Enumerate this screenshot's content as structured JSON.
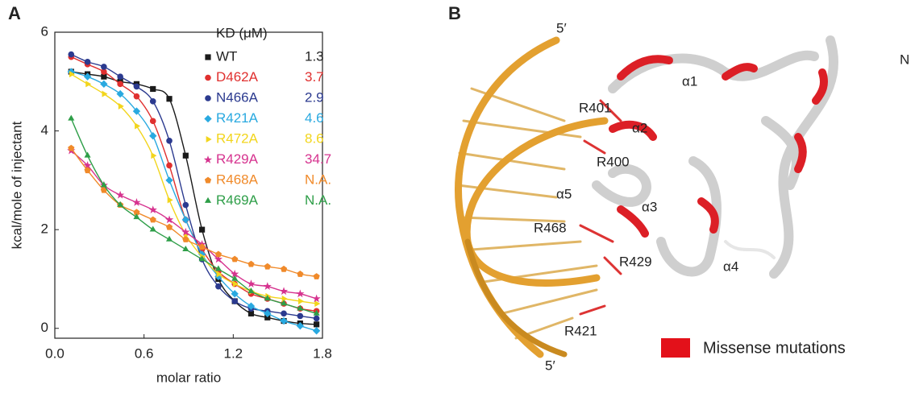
{
  "chart_data": {
    "type": "scatter",
    "panel_label": "A",
    "x_label": "molar ratio",
    "y_label": "kcal/mole of injectant",
    "legend_title": "KD (μM)",
    "x": [
      0.11,
      0.22,
      0.33,
      0.44,
      0.55,
      0.66,
      0.77,
      0.88,
      0.99,
      1.1,
      1.21,
      1.32,
      1.43,
      1.54,
      1.65,
      1.76
    ],
    "xlim": [
      0,
      1.8
    ],
    "ylim": [
      -0.2,
      6
    ],
    "xticks": [
      {
        "value": 0,
        "label": "0.0"
      },
      {
        "value": 0.6,
        "label": "0.6"
      },
      {
        "value": 1.2,
        "label": "1.2"
      },
      {
        "value": 1.8,
        "label": "1.8"
      }
    ],
    "yticks": [
      0,
      2,
      4,
      6
    ],
    "series": [
      {
        "name": "WT",
        "kd": 1.3,
        "color": "#1a1a1a",
        "marker": "square",
        "values": [
          5.2,
          5.15,
          5.1,
          5.0,
          4.95,
          4.85,
          4.65,
          3.5,
          2.0,
          1.0,
          0.55,
          0.3,
          0.22,
          0.15,
          0.1,
          0.08
        ]
      },
      {
        "name": "D462A",
        "kd": 3.7,
        "color": "#e0302f",
        "marker": "circle",
        "values": [
          5.5,
          5.35,
          5.2,
          4.95,
          4.7,
          4.2,
          3.3,
          2.2,
          1.6,
          1.15,
          0.9,
          0.7,
          0.6,
          0.5,
          0.4,
          0.35
        ]
      },
      {
        "name": "N466A",
        "kd": 2.9,
        "color": "#2b3a8f",
        "marker": "circle",
        "values": [
          5.55,
          5.4,
          5.3,
          5.1,
          4.9,
          4.6,
          3.8,
          2.5,
          1.4,
          0.85,
          0.55,
          0.4,
          0.35,
          0.3,
          0.25,
          0.2
        ]
      },
      {
        "name": "R421A",
        "kd": 4.6,
        "color": "#29a9e0",
        "marker": "diamond",
        "values": [
          5.2,
          5.1,
          4.95,
          4.75,
          4.4,
          3.9,
          3.0,
          2.2,
          1.5,
          1.05,
          0.7,
          0.45,
          0.3,
          0.15,
          0.05,
          -0.05
        ]
      },
      {
        "name": "R472A",
        "kd": 8.6,
        "color": "#f2d51c",
        "marker": "triangle-right",
        "values": [
          5.15,
          4.95,
          4.75,
          4.5,
          4.1,
          3.5,
          2.6,
          1.9,
          1.45,
          1.1,
          0.9,
          0.75,
          0.65,
          0.6,
          0.55,
          0.5
        ]
      },
      {
        "name": "R429A",
        "kd": 34.7,
        "color": "#d6338f",
        "marker": "star",
        "values": [
          3.6,
          3.3,
          2.9,
          2.7,
          2.55,
          2.4,
          2.2,
          1.95,
          1.7,
          1.4,
          1.1,
          0.9,
          0.85,
          0.75,
          0.7,
          0.6
        ]
      },
      {
        "name": "R468A",
        "kd": "N.A.",
        "color": "#f08a2a",
        "marker": "pentagon",
        "values": [
          3.65,
          3.2,
          2.8,
          2.5,
          2.35,
          2.2,
          2.05,
          1.8,
          1.65,
          1.5,
          1.4,
          1.3,
          1.25,
          1.2,
          1.1,
          1.05
        ]
      },
      {
        "name": "R469A",
        "kd": "N.A.",
        "color": "#2e9e48",
        "marker": "triangle-up",
        "values": [
          4.25,
          3.5,
          2.9,
          2.5,
          2.25,
          2.0,
          1.8,
          1.6,
          1.4,
          1.2,
          1.0,
          0.75,
          0.6,
          0.5,
          0.4,
          0.3
        ]
      }
    ]
  },
  "panel_b": {
    "panel_label": "B",
    "legend": "Missense mutations",
    "labels": [
      "5′",
      "5′",
      "N",
      "R401",
      "α1",
      "α2",
      "R400",
      "α5",
      "α3",
      "R468",
      "R429",
      "α4",
      "R421"
    ]
  }
}
